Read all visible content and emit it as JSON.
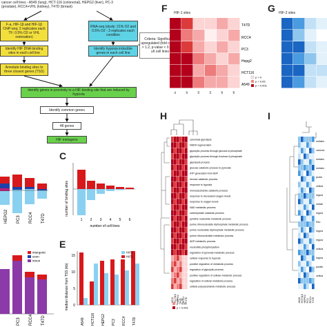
{
  "flow": {
    "top_line1": "cancer cell lines - A549 (lung), HCT-116 (colorectal), HEPG2 (liver), PC-3",
    "top_line2": "(prostate), RCC4+VHL (kidney), T47D (breast)",
    "yellow1": "F-a, HIF-1β and HIF-1β ChIP-seq; 2 replicates each TF; 0.5% O2 or VHL restoration)",
    "cyan1": "RNA-seq (study: 21% O2 and 0.5% O2 - 3 replicates each condition",
    "criteria": "Criteria: Significantly upregulated (fold change > 1.2, p-value < 0.05) in ≥6 cell lines",
    "yellow2": "Identify HIF DNA binding sites in each cell line",
    "cyan2": "Identify hypoxia inducible genes in each cell line",
    "yellow3": "Annotate binding sites to three closest genes (TSS)",
    "green1": "Identify genes in proximity to a HIF binding site that are induced by hypoxia",
    "white1": "Identify common genes",
    "white2": "48 genes",
    "green2": "HIF metagene"
  },
  "panel_labels": {
    "C": "C",
    "E": "E",
    "F": "F",
    "G": "G",
    "H": "H",
    "I": "I"
  },
  "panelF": {
    "title": "HIF-1 sites",
    "rows": [
      "T47D",
      "RCC4",
      "PC3",
      "Hepg2",
      "HCT116",
      "A549"
    ],
    "legend": [
      "p > 0",
      "p < 0.05",
      "p < 0.001"
    ]
  },
  "panelG": {
    "title": "HIF-2 sites"
  },
  "panelC": {
    "ylabel": "number of binding sites",
    "xlabel": "number of cell lines",
    "categories": [
      "1",
      "2",
      "3",
      "4",
      "5",
      "6"
    ]
  },
  "panelE": {
    "ylabel": "median distance from TSS (kb)",
    "legend": [
      "HIF1",
      "HIF2"
    ],
    "categories": [
      "A549",
      "HCT116",
      "HEPG2",
      "PC3",
      "RCC4",
      "T47D"
    ],
    "yticks": [
      "0",
      "5",
      "10",
      "15"
    ]
  },
  "panelB": {
    "categories": [
      "HEPG2",
      "PC3",
      "RCC4",
      "T47D"
    ]
  },
  "panelD": {
    "categories": [
      "PC3",
      "RCC4",
      "T47D"
    ],
    "legend": [
      "intergenic",
      "exon",
      "intron"
    ]
  },
  "panelH": {
    "terms": [
      "canonical glycolysis",
      "NADH regeneration",
      "glycolytic process through glucose-6-phosphate",
      "glycolytic process through fructose-6-phosphate",
      "glycolysis process",
      "glucose catabolic process to pyruvate",
      "ATP generation from ADP",
      "hexose catabolic process",
      "response to hypoxia",
      "monosaccharide catabolic process",
      "response to decreased oxygen levels",
      "response to oxygen levels",
      "NAD metabolic process",
      "carbohydrate catabolic process",
      "pyridine nucleotide metabolic process",
      "purine ribonucleoside diphosphate metabolic process",
      "purine nucleoside diphosphate metabolic process",
      "purine ribonucleotide metabolic process",
      "ADP metabolic process",
      "nucleotide phosphorylation",
      "regulation of pyruvate metabolic process",
      "cellular response to hypoxia",
      "positive regulation of metabolic process",
      "regulation of glycolytic process",
      "positive regulation of cellular metabolic process",
      "regulation of cellular metabolic process",
      "cellular polysaccharide metabolic process"
    ],
    "xlabels": [
      "A549",
      "HCT116",
      "HEPG2",
      "PC3",
      "RCC4",
      "T47D"
    ],
    "legend": [
      "p > 0",
      "p < 0.05",
      "p < 0.001"
    ]
  },
  "panelI": {
    "xlabels": [
      "A549",
      "HCT116",
      "HEPG2",
      "PC3",
      "RCC4",
      "T47D"
    ],
    "labels": [
      "metabo",
      "canonic",
      "metabo",
      "metabo",
      "protei",
      "cellula",
      "regula",
      "metab",
      "regula",
      "Rec",
      "regula",
      "regula",
      "cellula",
      "regula",
      "positiv",
      "cellula"
    ]
  },
  "colors": {
    "red": "#d7191c",
    "lightred": "#f4a6a6",
    "blue": "#2c7fb8",
    "lightblue": "#8ad0f0",
    "purple": "#8b3aa8"
  }
}
